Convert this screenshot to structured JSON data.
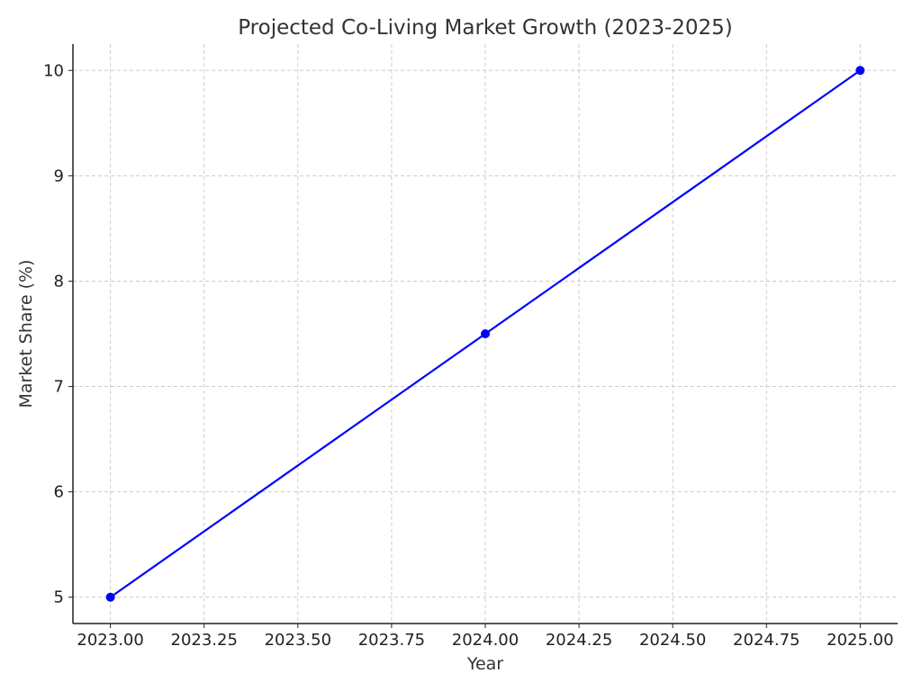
{
  "chart_data": {
    "type": "line",
    "title": "Projected Co-Living Market Growth (2023-2025)",
    "xlabel": "Year",
    "ylabel": "Market Share (%)",
    "xlim": [
      2022.9,
      2025.1
    ],
    "ylim": [
      4.75,
      10.25
    ],
    "x_ticks": [
      2023.0,
      2023.25,
      2023.5,
      2023.75,
      2024.0,
      2024.25,
      2024.5,
      2024.75,
      2025.0
    ],
    "x_tick_labels": [
      "2023.00",
      "2023.25",
      "2023.50",
      "2023.75",
      "2024.00",
      "2024.25",
      "2024.50",
      "2024.75",
      "2025.00"
    ],
    "y_ticks": [
      5,
      6,
      7,
      8,
      9,
      10
    ],
    "y_tick_labels": [
      "5",
      "6",
      "7",
      "8",
      "9",
      "10"
    ],
    "grid": true,
    "series": [
      {
        "x": [
          2023,
          2024,
          2025
        ],
        "values": [
          5,
          7.5,
          10
        ],
        "color": "#0000ff",
        "marker": "circle"
      }
    ]
  }
}
